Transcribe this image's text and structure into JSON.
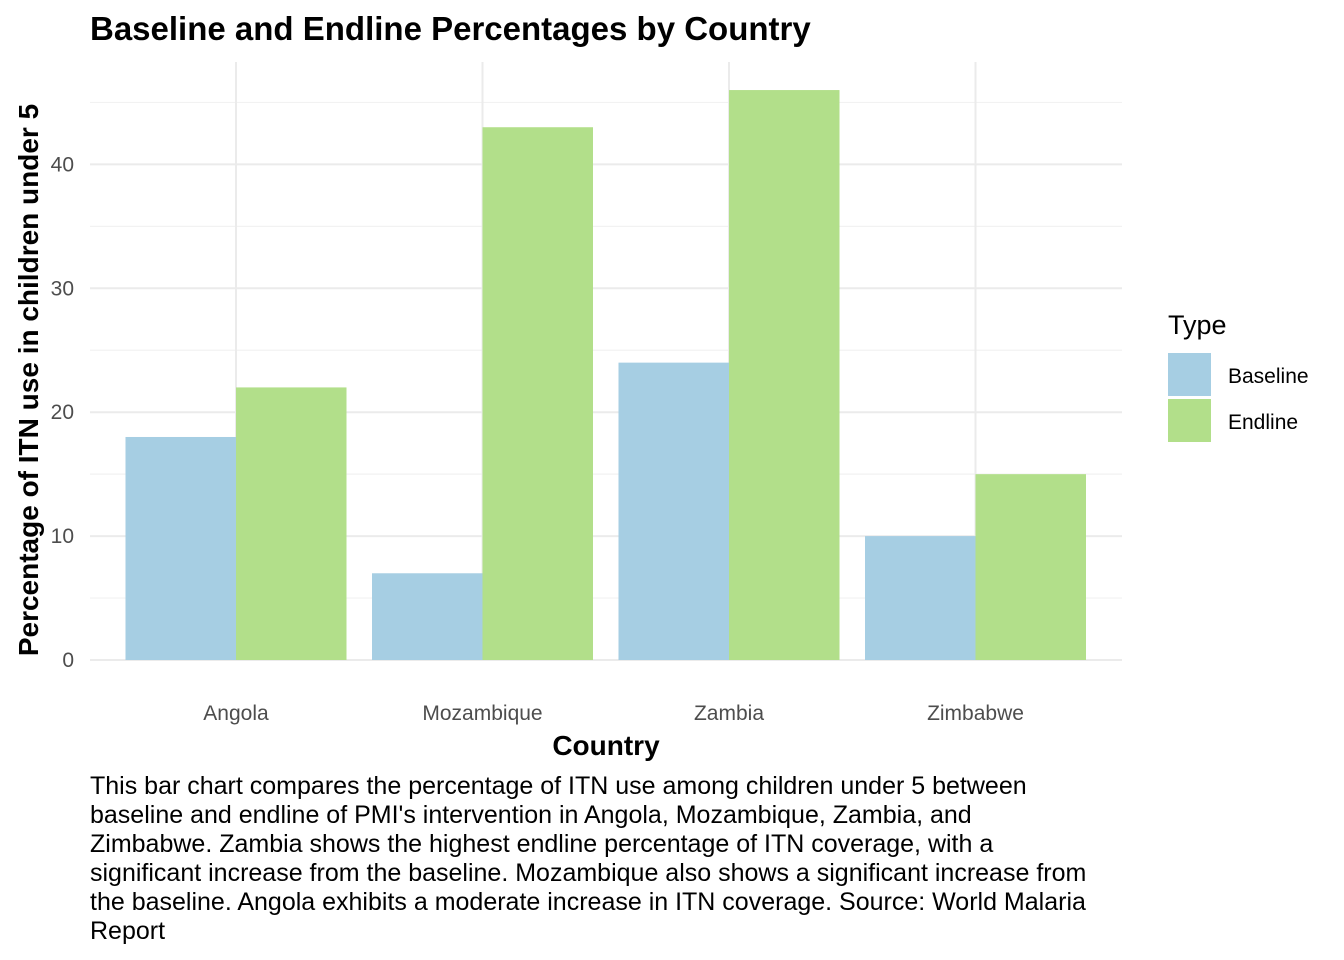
{
  "chart_data": {
    "type": "bar",
    "title": "Baseline and Endline Percentages by Country",
    "xlabel": "Country",
    "ylabel": "Percentage of ITN use in children under 5",
    "categories": [
      "Angola",
      "Mozambique",
      "Zambia",
      "Zimbabwe"
    ],
    "series": [
      {
        "name": "Baseline",
        "values": [
          18,
          7,
          24,
          10
        ],
        "color": "#a6cee3"
      },
      {
        "name": "Endline",
        "values": [
          22,
          43,
          46,
          15
        ],
        "color": "#b2df8a"
      }
    ],
    "ylim": [
      0,
      48
    ],
    "yticks": [
      0,
      10,
      20,
      30,
      40
    ],
    "legend": {
      "title": "Type",
      "position": "right"
    },
    "grid": true
  },
  "caption": "This bar chart compares the percentage of ITN use among children under 5 between baseline and endline of PMI's intervention in Angola, Mozambique, Zambia, and Zimbabwe. Zambia shows the highest endline percentage of ITN coverage, with a significant increase from the baseline. Mozambique also shows a significant increase from the baseline. Angola exhibits a moderate increase in ITN coverage. Source: World Malaria Report"
}
